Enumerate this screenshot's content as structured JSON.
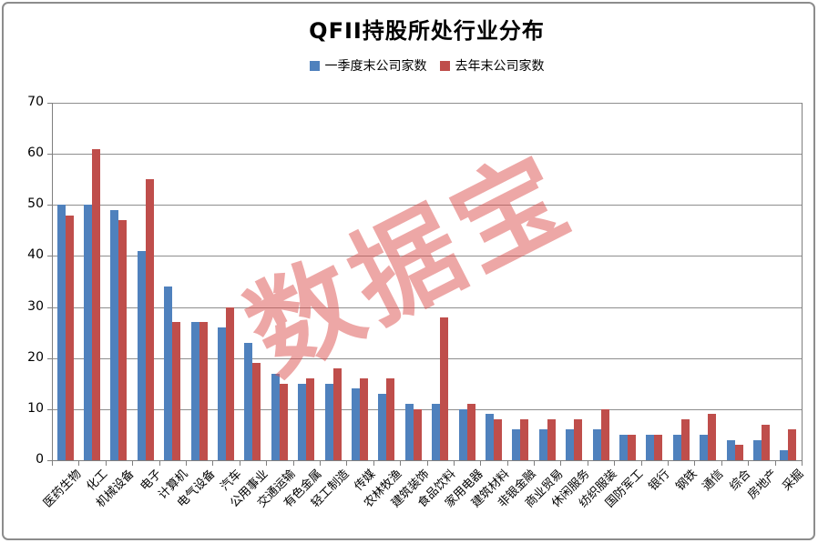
{
  "title": "QFII持股所处行业分布",
  "watermark": "数据宝",
  "legend": {
    "items": [
      {
        "label": "一季度末公司家数",
        "color": "#4F81BD"
      },
      {
        "label": "去年末公司家数",
        "color": "#BF4E4B"
      }
    ]
  },
  "colors": {
    "series1_blue": "#4F81BD",
    "series2_red": "#BF4E4B",
    "gridline": "#8E8E8E",
    "axis": "#7F7F7F",
    "frame_border": "#8C8C8C",
    "watermark_red": "rgba(219,80,78,0.5)",
    "title_text": "#000000"
  },
  "chart_data": {
    "type": "bar",
    "title": "QFII持股所处行业分布",
    "categories": [
      "医药生物",
      "化工",
      "机械设备",
      "电子",
      "计算机",
      "电气设备",
      "汽车",
      "公用事业",
      "交通运输",
      "有色金属",
      "轻工制造",
      "传媒",
      "农林牧渔",
      "建筑装饰",
      "食品饮料",
      "家用电器",
      "建筑材料",
      "非银金融",
      "商业贸易",
      "休闲服务",
      "纺织服装",
      "国防军工",
      "银行",
      "钢铁",
      "通信",
      "综合",
      "房地产",
      "采掘"
    ],
    "series": [
      {
        "name": "一季度末公司家数",
        "color": "#4F81BD",
        "values": [
          50,
          50,
          49,
          41,
          34,
          27,
          26,
          23,
          17,
          15,
          15,
          14,
          13,
          11,
          11,
          10,
          9,
          6,
          6,
          6,
          6,
          5,
          5,
          5,
          5,
          4,
          4,
          2
        ]
      },
      {
        "name": "去年末公司家数",
        "color": "#BF4E4B",
        "values": [
          48,
          61,
          47,
          55,
          27,
          27,
          30,
          19,
          15,
          16,
          18,
          16,
          16,
          10,
          28,
          11,
          8,
          8,
          8,
          8,
          10,
          5,
          5,
          8,
          9,
          3,
          7,
          6
        ]
      }
    ],
    "xlabel": "",
    "ylabel": "",
    "ylim": [
      0,
      70
    ],
    "yticks": [
      0,
      10,
      20,
      30,
      40,
      50,
      60,
      70
    ],
    "grid": true,
    "legend_position": "top",
    "xlabel_rotation_deg": 45
  }
}
